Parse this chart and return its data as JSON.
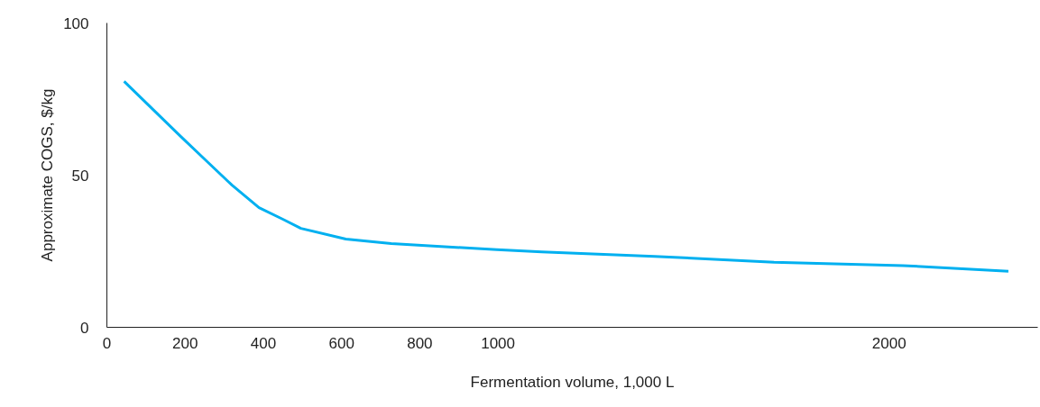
{
  "chart_data": {
    "type": "line",
    "xlabel": "Fermentation volume, 1,000 L",
    "ylabel": "Approximate COGS, $/kg",
    "xlim": [
      0,
      2380
    ],
    "ylim": [
      0,
      100
    ],
    "xticks": [
      0,
      200,
      400,
      600,
      800,
      1000,
      2000
    ],
    "yticks": [
      0,
      50,
      100
    ],
    "grid": false,
    "marker": "none",
    "line_style": "solid",
    "series": [
      {
        "color": "#00b0f0",
        "x": [
          44,
          189,
          251,
          320,
          389,
          450,
          496,
          611,
          727,
          997,
          1112,
          1400,
          1706,
          2035,
          2305
        ],
        "values": [
          80.8,
          62.7,
          55.1,
          46.7,
          39.3,
          35.5,
          32.5,
          29,
          27.5,
          25.5,
          24.8,
          23.3,
          21.4,
          20.3,
          18.4
        ]
      }
    ]
  }
}
